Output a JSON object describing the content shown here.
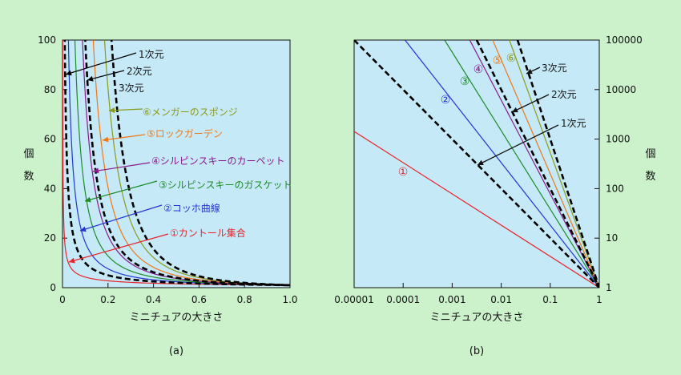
{
  "chart_data": [
    {
      "type": "line",
      "panel": "(a)",
      "xlabel": "ミニチュアの大きさ",
      "ylabel": [
        "個",
        "数"
      ],
      "xlim": [
        0,
        1.0
      ],
      "ylim": [
        0,
        100
      ],
      "xticks": [
        "0",
        "0.2",
        "0.4",
        "0.6",
        "0.8",
        "1.0"
      ],
      "yticks": [
        "0",
        "20",
        "40",
        "60",
        "80",
        "100"
      ],
      "series": [
        {
          "name": "①カントール集合",
          "dimension": 0.631,
          "color": "#e8242a",
          "dashed": false
        },
        {
          "name": "②コッホ曲線",
          "dimension": 1.262,
          "color": "#2436d0",
          "dashed": false
        },
        {
          "name": "③シルピンスキーのガスケット",
          "dimension": 1.585,
          "color": "#1e8a28",
          "dashed": false
        },
        {
          "name": "④シルピンスキーのカーペット",
          "dimension": 1.893,
          "color": "#8a1a8a",
          "dashed": false
        },
        {
          "name": "⑤ロックガーデン",
          "dimension": 2.3,
          "color": "#f07818",
          "dashed": false
        },
        {
          "name": "⑥メンガーのスポンジ",
          "dimension": 2.727,
          "color": "#8a9a1c",
          "dashed": false
        },
        {
          "name": "1次元",
          "dimension": 1,
          "color": "#000000",
          "dashed": true
        },
        {
          "name": "2次元",
          "dimension": 2,
          "color": "#000000",
          "dashed": true
        },
        {
          "name": "3次元",
          "dimension": 3,
          "color": "#000000",
          "dashed": true
        }
      ]
    },
    {
      "type": "line",
      "panel": "(b)",
      "xlabel": "ミニチュアの大きさ",
      "ylabel": [
        "個",
        "数"
      ],
      "xscale": "log",
      "yscale": "log",
      "xlim": [
        1e-05,
        1
      ],
      "ylim": [
        1,
        100000
      ],
      "xticks": [
        "0.00001",
        "0.0001",
        "0.001",
        "0.01",
        "0.1",
        "1"
      ],
      "yticks": [
        "1",
        "10",
        "100",
        "1000",
        "10000",
        "100000"
      ],
      "series_labels": [
        "①",
        "②",
        "③",
        "④",
        "⑤",
        "⑥",
        "3次元",
        "2次元",
        "1次元"
      ]
    }
  ]
}
